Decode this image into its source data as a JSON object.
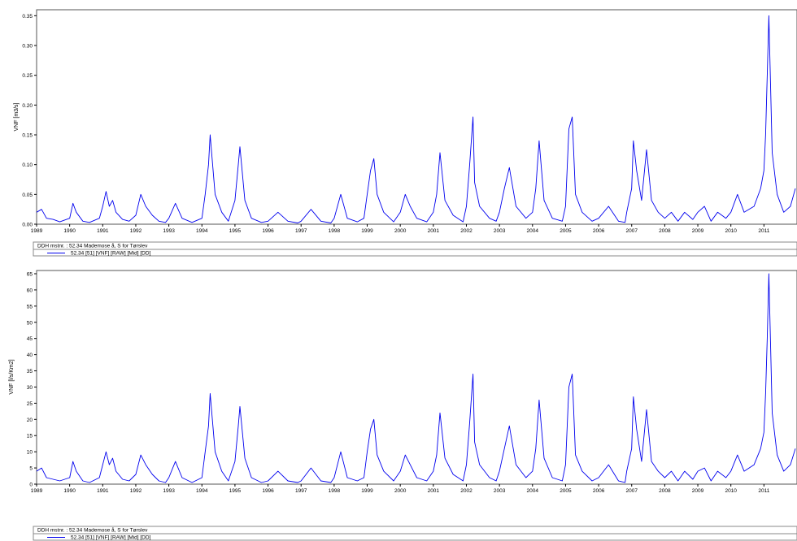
{
  "colors": {
    "series": "#0000ee",
    "axis": "#000000",
    "frame": "#555555",
    "background": "#ffffff"
  },
  "x_axis_years": [
    "1989",
    "1990",
    "1991",
    "1992",
    "1993",
    "1994",
    "1995",
    "1996",
    "1997",
    "1998",
    "1999",
    "2000",
    "2001",
    "2002",
    "2003",
    "2004",
    "2005",
    "2006",
    "2007",
    "2008",
    "2009",
    "2010",
    "2011"
  ],
  "chart_data": [
    {
      "type": "line",
      "title": "",
      "xlabel": "",
      "ylabel": "VNF [m3/s]",
      "xlim": [
        1989,
        2012
      ],
      "ylim": [
        0,
        0.36
      ],
      "yticks": [
        "0.00",
        "0.05",
        "0.10",
        "0.15",
        "0.20",
        "0.25",
        "0.30",
        "0.35"
      ],
      "legend": {
        "station": "DDH mstnr. : 52.34 Mademose å, S for Tørslev",
        "series": "52.34 [51] [VNF] [RAW] [Mid] [DD]"
      },
      "series": [
        {
          "name": "52.34 [51] [VNF] [RAW] [Mid] [DD]",
          "x": [
            1989.0,
            1989.15,
            1989.3,
            1989.5,
            1989.7,
            1990.0,
            1990.1,
            1990.2,
            1990.4,
            1990.6,
            1990.9,
            1991.0,
            1991.1,
            1991.2,
            1991.3,
            1991.4,
            1991.6,
            1991.8,
            1992.0,
            1992.15,
            1992.3,
            1992.5,
            1992.7,
            1992.9,
            1993.0,
            1993.2,
            1993.4,
            1993.7,
            1994.0,
            1994.1,
            1994.2,
            1994.25,
            1994.4,
            1994.6,
            1994.8,
            1995.0,
            1995.1,
            1995.15,
            1995.3,
            1995.5,
            1995.8,
            1996.0,
            1996.3,
            1996.6,
            1996.9,
            1997.0,
            1997.3,
            1997.6,
            1997.9,
            1998.0,
            1998.2,
            1998.4,
            1998.7,
            1998.9,
            1999.0,
            1999.1,
            1999.2,
            1999.3,
            1999.5,
            1999.8,
            2000.0,
            2000.15,
            2000.3,
            2000.5,
            2000.8,
            2001.0,
            2001.1,
            2001.2,
            2001.35,
            2001.6,
            2001.9,
            2002.0,
            2002.1,
            2002.2,
            2002.25,
            2002.4,
            2002.7,
            2002.9,
            2003.0,
            2003.15,
            2003.3,
            2003.5,
            2003.8,
            2004.0,
            2004.1,
            2004.2,
            2004.35,
            2004.6,
            2004.9,
            2005.0,
            2005.1,
            2005.2,
            2005.3,
            2005.5,
            2005.8,
            2006.0,
            2006.3,
            2006.6,
            2006.8,
            2006.85,
            2007.0,
            2007.05,
            2007.15,
            2007.3,
            2007.45,
            2007.6,
            2007.8,
            2008.0,
            2008.2,
            2008.4,
            2008.6,
            2008.85,
            2009.0,
            2009.2,
            2009.4,
            2009.6,
            2009.85,
            2010.0,
            2010.2,
            2010.4,
            2010.7,
            2010.9,
            2011.0,
            2011.05,
            2011.1,
            2011.15,
            2011.25,
            2011.4,
            2011.6,
            2011.8,
            2011.95
          ],
          "y": [
            0.02,
            0.025,
            0.01,
            0.008,
            0.004,
            0.01,
            0.035,
            0.02,
            0.005,
            0.003,
            0.01,
            0.03,
            0.055,
            0.03,
            0.04,
            0.02,
            0.008,
            0.005,
            0.015,
            0.05,
            0.03,
            0.015,
            0.005,
            0.003,
            0.01,
            0.035,
            0.01,
            0.003,
            0.01,
            0.05,
            0.1,
            0.15,
            0.05,
            0.02,
            0.005,
            0.04,
            0.1,
            0.13,
            0.04,
            0.01,
            0.003,
            0.005,
            0.02,
            0.005,
            0.002,
            0.005,
            0.025,
            0.005,
            0.002,
            0.01,
            0.05,
            0.01,
            0.004,
            0.01,
            0.05,
            0.09,
            0.11,
            0.05,
            0.02,
            0.004,
            0.02,
            0.05,
            0.03,
            0.01,
            0.004,
            0.02,
            0.05,
            0.12,
            0.04,
            0.015,
            0.004,
            0.03,
            0.1,
            0.18,
            0.07,
            0.03,
            0.01,
            0.005,
            0.02,
            0.06,
            0.095,
            0.03,
            0.01,
            0.02,
            0.06,
            0.14,
            0.04,
            0.01,
            0.005,
            0.03,
            0.16,
            0.18,
            0.05,
            0.02,
            0.005,
            0.01,
            0.03,
            0.005,
            0.003,
            0.02,
            0.06,
            0.14,
            0.09,
            0.04,
            0.125,
            0.04,
            0.02,
            0.01,
            0.02,
            0.005,
            0.02,
            0.008,
            0.02,
            0.03,
            0.005,
            0.02,
            0.01,
            0.02,
            0.05,
            0.02,
            0.03,
            0.06,
            0.09,
            0.15,
            0.25,
            0.35,
            0.12,
            0.05,
            0.02,
            0.03,
            0.06
          ]
        }
      ]
    },
    {
      "type": "line",
      "title": "",
      "xlabel": "",
      "ylabel": "VNF [l/s/Km2]",
      "xlim": [
        1989,
        2012
      ],
      "ylim": [
        0,
        66
      ],
      "yticks": [
        "0",
        "5",
        "10",
        "15",
        "20",
        "25",
        "30",
        "35",
        "40",
        "45",
        "50",
        "55",
        "60",
        "65"
      ],
      "legend": {
        "station": "DDH mstnr. : 52.34 Mademose å, S for Tørslev",
        "series": "52.34 [51] [VNF] [RAW] [Mid] [DD]"
      },
      "series": [
        {
          "name": "52.34 [51] [VNF] [RAW] [Mid] [DD]",
          "x": [
            1989.0,
            1989.15,
            1989.3,
            1989.5,
            1989.7,
            1990.0,
            1990.1,
            1990.2,
            1990.4,
            1990.6,
            1990.9,
            1991.0,
            1991.1,
            1991.2,
            1991.3,
            1991.4,
            1991.6,
            1991.8,
            1992.0,
            1992.15,
            1992.3,
            1992.5,
            1992.7,
            1992.9,
            1993.0,
            1993.2,
            1993.4,
            1993.7,
            1994.0,
            1994.1,
            1994.2,
            1994.25,
            1994.4,
            1994.6,
            1994.8,
            1995.0,
            1995.1,
            1995.15,
            1995.3,
            1995.5,
            1995.8,
            1996.0,
            1996.3,
            1996.6,
            1996.9,
            1997.0,
            1997.3,
            1997.6,
            1997.9,
            1998.0,
            1998.2,
            1998.4,
            1998.7,
            1998.9,
            1999.0,
            1999.1,
            1999.2,
            1999.3,
            1999.5,
            1999.8,
            2000.0,
            2000.15,
            2000.3,
            2000.5,
            2000.8,
            2001.0,
            2001.1,
            2001.2,
            2001.35,
            2001.6,
            2001.9,
            2002.0,
            2002.1,
            2002.2,
            2002.25,
            2002.4,
            2002.7,
            2002.9,
            2003.0,
            2003.15,
            2003.3,
            2003.5,
            2003.8,
            2004.0,
            2004.1,
            2004.2,
            2004.35,
            2004.6,
            2004.9,
            2005.0,
            2005.1,
            2005.2,
            2005.3,
            2005.5,
            2005.8,
            2006.0,
            2006.3,
            2006.6,
            2006.8,
            2006.85,
            2007.0,
            2007.05,
            2007.15,
            2007.3,
            2007.45,
            2007.6,
            2007.8,
            2008.0,
            2008.2,
            2008.4,
            2008.6,
            2008.85,
            2009.0,
            2009.2,
            2009.4,
            2009.6,
            2009.85,
            2010.0,
            2010.2,
            2010.4,
            2010.7,
            2010.9,
            2011.0,
            2011.05,
            2011.1,
            2011.15,
            2011.25,
            2011.4,
            2011.6,
            2011.8,
            2011.95
          ],
          "y": [
            4,
            5,
            2,
            1.5,
            1,
            2,
            7,
            4,
            1,
            0.5,
            2,
            6,
            10,
            6,
            8,
            4,
            1.5,
            1,
            3,
            9,
            6,
            3,
            1,
            0.5,
            2,
            7,
            2,
            0.5,
            2,
            10,
            18,
            28,
            10,
            4,
            1,
            7,
            18,
            24,
            8,
            2,
            0.5,
            1,
            4,
            1,
            0.5,
            1,
            5,
            1,
            0.5,
            2,
            10,
            2,
            1,
            2,
            10,
            17,
            20,
            9,
            4,
            1,
            4,
            9,
            6,
            2,
            1,
            4,
            9,
            22,
            8,
            3,
            1,
            6,
            19,
            34,
            13,
            6,
            2,
            1,
            4,
            11,
            18,
            6,
            2,
            4,
            11,
            26,
            8,
            2,
            1,
            6,
            30,
            34,
            9,
            4,
            1,
            2,
            6,
            1,
            0.5,
            4,
            11,
            27,
            17,
            7,
            23,
            7,
            4,
            2,
            4,
            1,
            4,
            1.5,
            4,
            5,
            1,
            4,
            2,
            4,
            9,
            4,
            6,
            11,
            16,
            28,
            45,
            65,
            22,
            9,
            4,
            6,
            11
          ]
        }
      ]
    }
  ]
}
